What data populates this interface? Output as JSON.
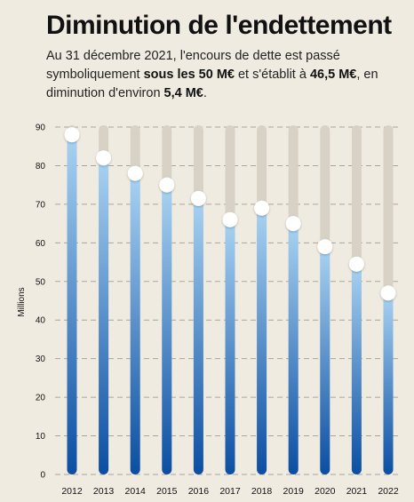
{
  "header": {
    "title": "Diminution de l'endettement",
    "subtitle_parts": [
      {
        "text": "Au 31 décembre 2021, l'encours de dette est passé symboliquement ",
        "bold": false
      },
      {
        "text": "sous les 50 M€",
        "bold": true
      },
      {
        "text": " et s'établit à ",
        "bold": false
      },
      {
        "text": "46,5 M€",
        "bold": true
      },
      {
        "text": ", en diminution d'environ ",
        "bold": false
      },
      {
        "text": "5,4 M€",
        "bold": true
      },
      {
        "text": ".",
        "bold": false
      }
    ]
  },
  "chart_data": {
    "type": "bar",
    "categories": [
      "2012",
      "2013",
      "2014",
      "2015",
      "2016",
      "2017",
      "2018",
      "2019",
      "2020",
      "2021",
      "2022"
    ],
    "values": [
      88,
      82,
      78,
      75,
      71.5,
      66,
      69,
      65,
      59,
      54.5,
      47
    ],
    "ylabel": "Millions",
    "ylim": [
      0,
      90
    ],
    "yticks": [
      0,
      10,
      20,
      30,
      40,
      50,
      60,
      70,
      80,
      90
    ],
    "grid": true,
    "colors": {
      "bar_top": "#a9d3f2",
      "bar_bottom": "#0b4ea2",
      "track": "#d8d2c6",
      "grid": "#a9a59d",
      "marker": "#ffffff"
    }
  }
}
